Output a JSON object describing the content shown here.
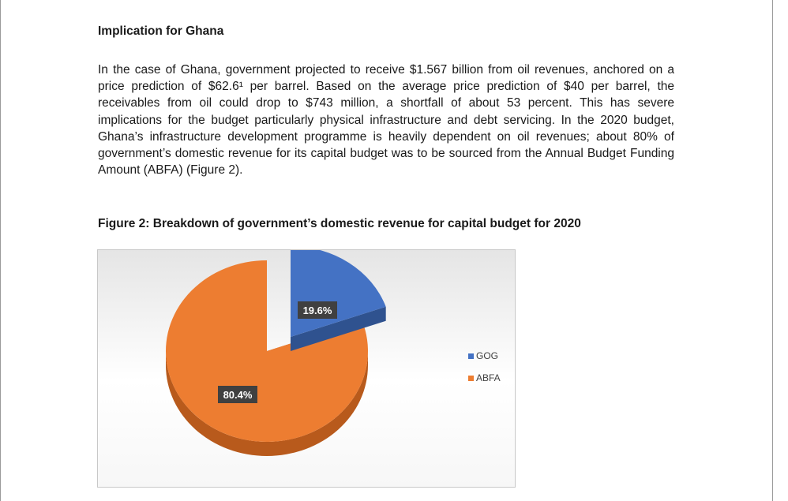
{
  "document": {
    "heading": "Implication for Ghana",
    "paragraph": "In the case of Ghana, government projected to receive $1.567 billion from oil revenues, anchored on a price prediction of $62.6¹ per barrel. Based on the average price prediction of $40 per barrel, the receivables from oil could drop to $743 million, a shortfall of about 53 percent. This has severe implications for the budget particularly physical infrastructure and debt servicing. In the 2020 budget, Ghana’s infrastructure development programme is heavily dependent on oil revenues; about 80% of government’s domestic revenue for its capital budget was to be sourced from the Annual Budget Funding Amount (ABFA) (Figure 2).",
    "figure_title": "Figure 2: Breakdown of government’s domestic revenue for capital budget for 2020"
  },
  "chart_data": {
    "type": "pie",
    "style": "3d-exploded",
    "title": "",
    "categories": [
      "GOG",
      "ABFA"
    ],
    "values": [
      19.6,
      80.4
    ],
    "data_labels": [
      "19.6%",
      "80.4%"
    ],
    "colors": [
      "#4472C4",
      "#ED7D31"
    ],
    "side_colors": [
      "#2F528F",
      "#B85A1C"
    ],
    "legend": {
      "placement": "right",
      "entries": [
        "GOG",
        "ABFA"
      ]
    }
  }
}
